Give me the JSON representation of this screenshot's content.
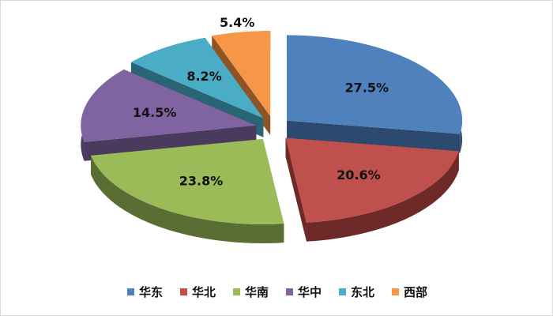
{
  "chart_data": {
    "type": "pie",
    "style": "3d-exploded",
    "categories": [
      "华东",
      "华北",
      "华南",
      "华中",
      "东北",
      "西部"
    ],
    "values": [
      27.5,
      20.6,
      23.8,
      14.5,
      8.2,
      5.4
    ],
    "data_labels": [
      "27.5%",
      "20.6%",
      "23.8%",
      "14.5%",
      "8.2%",
      "5.4%"
    ],
    "colors": [
      "#4f81bd",
      "#c0504d",
      "#9bbb59",
      "#8064a2",
      "#4bacc6",
      "#f79646"
    ],
    "side_colors": [
      "#2c4a70",
      "#6e2a28",
      "#5a6d32",
      "#4a3a5e",
      "#2a6575",
      "#8e5425"
    ],
    "legend_position": "bottom",
    "title": ""
  }
}
